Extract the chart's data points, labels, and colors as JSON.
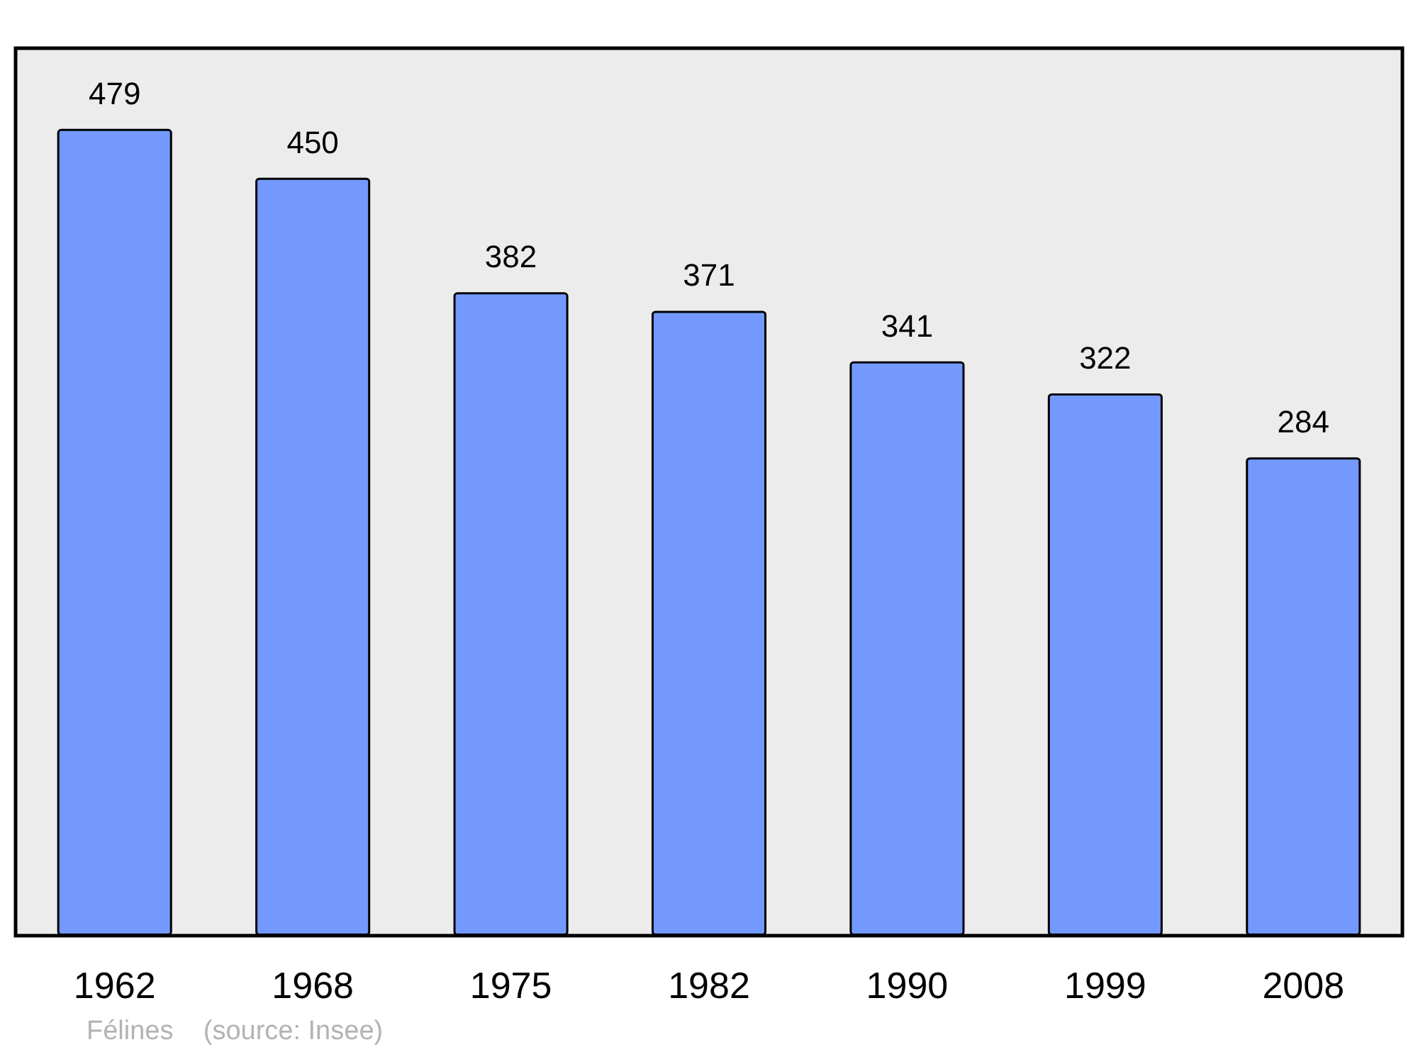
{
  "chart_data": {
    "type": "bar",
    "categories": [
      "1962",
      "1968",
      "1975",
      "1982",
      "1990",
      "1999",
      "2008"
    ],
    "values": [
      479,
      450,
      382,
      371,
      341,
      322,
      284
    ],
    "color": "#7399ff",
    "data_labels": true,
    "annotations": [
      "Félines    (source: Insee)"
    ]
  }
}
